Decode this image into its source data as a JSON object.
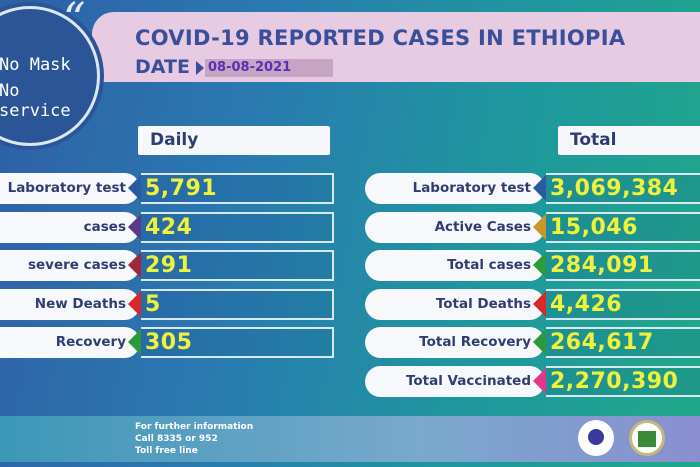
{
  "header": {
    "title": "COVID-19 REPORTED CASES IN ETHIOPIA",
    "date_label": "DATE",
    "date": "08-08-2021"
  },
  "badge": {
    "line1": "No Mask",
    "line2": "No service"
  },
  "daily": {
    "heading": "Daily",
    "rows": [
      {
        "label": "Laboratory test",
        "value": "5,791",
        "color": "#2a5aa0"
      },
      {
        "label": "cases",
        "value": "424",
        "color": "#5a3a8a"
      },
      {
        "label": "severe cases",
        "value": "291",
        "color": "#a0283a"
      },
      {
        "label": "New Deaths",
        "value": "5",
        "color": "#d8282a"
      },
      {
        "label": "Recovery",
        "value": "305",
        "color": "#2a9a3a"
      }
    ]
  },
  "total": {
    "heading": "Total",
    "rows": [
      {
        "label": "Laboratory test",
        "value": "3,069,384",
        "color": "#2a5aa0"
      },
      {
        "label": "Active Cases",
        "value": "15,046",
        "color": "#c8962a"
      },
      {
        "label": "Total cases",
        "value": "284,091",
        "color": "#2a9a3a"
      },
      {
        "label": "Total Deaths",
        "value": "4,426",
        "color": "#d8282a"
      },
      {
        "label": "Total Recovery",
        "value": "264,617",
        "color": "#2a9a3a"
      },
      {
        "label": "Total Vaccinated",
        "value": "2,270,390",
        "color": "#e0388a"
      }
    ]
  },
  "footer": {
    "line1": "For further information",
    "line2": "Call 8335 or 952",
    "line3": "Toll free line"
  }
}
